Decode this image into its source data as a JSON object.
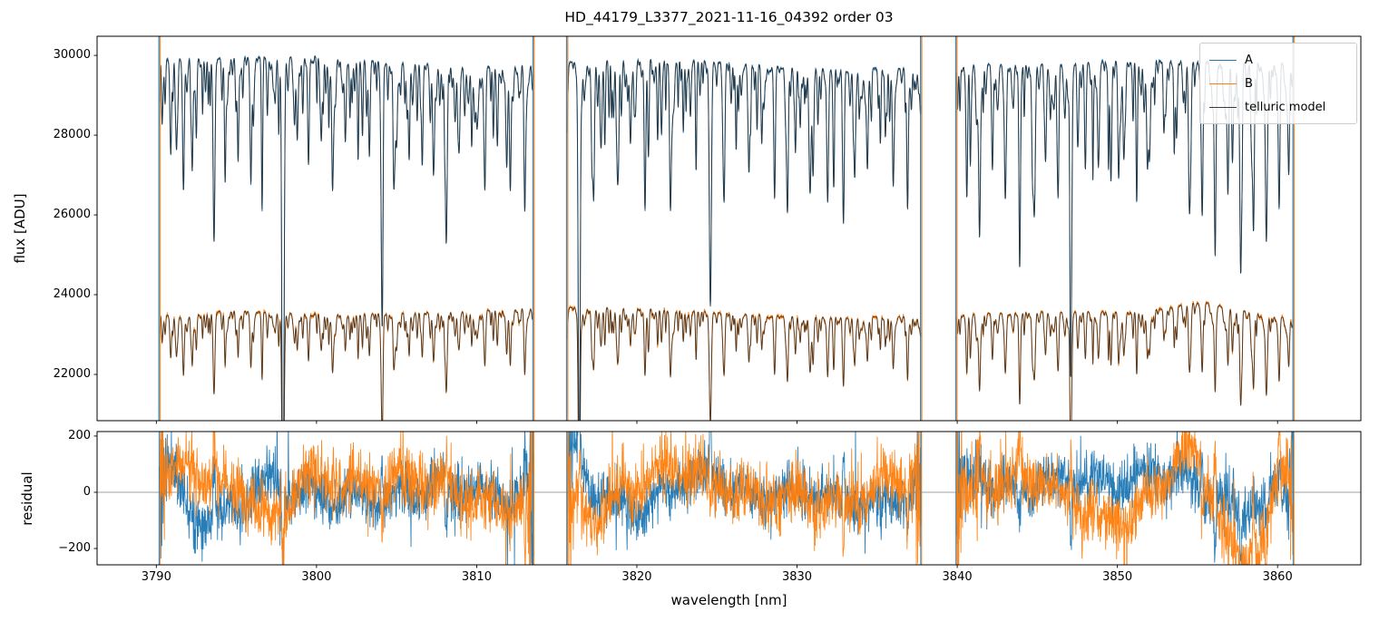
{
  "title": "HD_44179_L3377_2021-11-16_04392  order 03",
  "chart_data": [
    {
      "type": "line",
      "panel": "flux",
      "ylabel": "flux [ADU]",
      "xlim": [
        3786.3,
        3865.2
      ],
      "ylim": [
        20840,
        30480
      ],
      "xticks": [
        3790,
        3800,
        3810,
        3820,
        3830,
        3840,
        3850,
        3860
      ],
      "yticks": [
        22000,
        24000,
        26000,
        28000,
        30000
      ],
      "legend_position": "upper right",
      "segments": [
        [
          3790.2,
          3813.55
        ],
        [
          3815.65,
          3837.75
        ],
        [
          3839.95,
          3861.0
        ]
      ],
      "boundaries": [
        3790.2,
        3813.55,
        3815.65,
        3837.75,
        3839.95,
        3861.0
      ],
      "series": [
        {
          "name": "A",
          "color": "#1f77b4",
          "absorption_exponent": 1.0,
          "noise_adu": 22,
          "seed": 5,
          "continuum": {
            "base": 29850,
            "waves": [
              [
                120,
                0.25,
                0
              ],
              [
                80,
                0.09,
                1.3
              ]
            ],
            "dips": [
              [
                3795,
                100,
                2.5
              ],
              [
                3846,
                180,
                3.5
              ]
            ]
          }
        },
        {
          "name": "B",
          "color": "#ff7f0e",
          "absorption_exponent": 0.55,
          "noise_adu": 26,
          "seed": 13,
          "continuum": {
            "base": 23550,
            "waves": [
              [
                90,
                0.21,
                2.1
              ],
              [
                60,
                0.07,
                0.5
              ]
            ],
            "dips": [
              [
                3791.5,
                200,
                1.2
              ],
              [
                3855.5,
                -320,
                2.0
              ]
            ]
          }
        },
        {
          "name": "telluric model",
          "color": "#282828",
          "alpha": 0.8
        }
      ],
      "telluric_lines": [
        [
          3790.9,
          0.08,
          0.05
        ],
        [
          3791.7,
          0.09,
          0.05
        ],
        [
          3792.5,
          0.06,
          0.04
        ],
        [
          3793.6,
          0.13,
          0.06
        ],
        [
          3794.3,
          0.07,
          0.05
        ],
        [
          3795.1,
          0.05,
          0.04
        ],
        [
          3795.9,
          0.1,
          0.05
        ],
        [
          3796.6,
          0.06,
          0.04
        ],
        [
          3797.9,
          0.42,
          0.06
        ],
        [
          3798.8,
          0.06,
          0.05
        ],
        [
          3799.5,
          0.09,
          0.05
        ],
        [
          3800.3,
          0.07,
          0.05
        ],
        [
          3801.0,
          0.11,
          0.05
        ],
        [
          3801.8,
          0.07,
          0.05
        ],
        [
          3802.6,
          0.06,
          0.04
        ],
        [
          3803.3,
          0.08,
          0.05
        ],
        [
          3804.1,
          0.13,
          0.05
        ],
        [
          3805.0,
          0.07,
          0.05
        ],
        [
          3805.8,
          0.05,
          0.04
        ],
        [
          3806.6,
          0.08,
          0.05
        ],
        [
          3807.3,
          0.09,
          0.05
        ],
        [
          3808.1,
          0.15,
          0.06
        ],
        [
          3808.9,
          0.07,
          0.05
        ],
        [
          3809.7,
          0.05,
          0.04
        ],
        [
          3810.5,
          0.08,
          0.05
        ],
        [
          3811.3,
          0.06,
          0.04
        ],
        [
          3812.1,
          0.1,
          0.05
        ],
        [
          3813.0,
          0.12,
          0.05
        ],
        [
          3816.4,
          0.34,
          0.06
        ],
        [
          3817.2,
          0.08,
          0.05
        ],
        [
          3818.0,
          0.06,
          0.04
        ],
        [
          3818.8,
          0.1,
          0.05
        ],
        [
          3819.6,
          0.07,
          0.05
        ],
        [
          3820.5,
          0.1,
          0.05
        ],
        [
          3821.3,
          0.06,
          0.04
        ],
        [
          3822.1,
          0.08,
          0.05
        ],
        [
          3822.9,
          0.06,
          0.04
        ],
        [
          3823.7,
          0.05,
          0.04
        ],
        [
          3824.6,
          0.17,
          0.06
        ],
        [
          3825.4,
          0.08,
          0.05
        ],
        [
          3826.2,
          0.06,
          0.04
        ],
        [
          3827.0,
          0.09,
          0.05
        ],
        [
          3827.8,
          0.06,
          0.04
        ],
        [
          3828.6,
          0.11,
          0.05
        ],
        [
          3829.4,
          0.07,
          0.05
        ],
        [
          3830.2,
          0.05,
          0.04
        ],
        [
          3831.0,
          0.09,
          0.05
        ],
        [
          3831.9,
          0.07,
          0.05
        ],
        [
          3832.9,
          0.13,
          0.05
        ],
        [
          3833.6,
          0.09,
          0.05
        ],
        [
          3834.4,
          0.07,
          0.05
        ],
        [
          3835.2,
          0.05,
          0.04
        ],
        [
          3836.0,
          0.09,
          0.05
        ],
        [
          3836.9,
          0.12,
          0.05
        ],
        [
          3840.6,
          0.1,
          0.05
        ],
        [
          3841.4,
          0.13,
          0.05
        ],
        [
          3842.2,
          0.08,
          0.05
        ],
        [
          3843.0,
          0.11,
          0.05
        ],
        [
          3843.9,
          0.14,
          0.05
        ],
        [
          3844.7,
          0.09,
          0.05
        ],
        [
          3845.5,
          0.07,
          0.05
        ],
        [
          3846.3,
          0.11,
          0.05
        ],
        [
          3847.1,
          0.21,
          0.06
        ],
        [
          3848.0,
          0.09,
          0.05
        ],
        [
          3848.8,
          0.07,
          0.05
        ],
        [
          3849.6,
          0.1,
          0.05
        ],
        [
          3850.4,
          0.08,
          0.05
        ],
        [
          3851.2,
          0.06,
          0.04
        ],
        [
          3852.0,
          0.07,
          0.05
        ],
        [
          3852.9,
          0.05,
          0.04
        ],
        [
          3853.7,
          0.06,
          0.04
        ],
        [
          3854.5,
          0.08,
          0.05
        ],
        [
          3855.3,
          0.12,
          0.05
        ],
        [
          3856.1,
          0.15,
          0.05
        ],
        [
          3856.9,
          0.11,
          0.05
        ],
        [
          3857.7,
          0.16,
          0.06
        ],
        [
          3858.5,
          0.13,
          0.05
        ],
        [
          3859.3,
          0.15,
          0.06
        ],
        [
          3860.1,
          0.12,
          0.05
        ],
        [
          3860.7,
          0.09,
          0.05
        ]
      ],
      "random_line_layers": [
        {
          "spacing": 0.85,
          "max_depth": 0.1,
          "seed": 3.7
        },
        {
          "spacing": 0.17,
          "max_depth": 0.05,
          "seed": 9.1
        }
      ]
    },
    {
      "type": "line",
      "panel": "residual",
      "ylabel": "residual",
      "xlabel": "wavelength [nm]",
      "ylim": [
        -258,
        216
      ],
      "ytick_values": [
        -200,
        0,
        200
      ],
      "ytick_labels": [
        "−200",
        "0",
        "200"
      ],
      "zero_line_color": "#808080",
      "series": [
        {
          "name": "A",
          "color": "#1f77b4",
          "noise": 48,
          "seed": 11,
          "bumps": [
            [
              3790.8,
              110,
              0.4
            ],
            [
              3793.3,
              -100,
              1.3
            ],
            [
              3797,
              50,
              0.8
            ],
            [
              3801,
              -35,
              1.5
            ],
            [
              3816.3,
              130,
              0.35
            ],
            [
              3820,
              -45,
              1.5
            ],
            [
              3824,
              50,
              1.5
            ],
            [
              3833,
              -45,
              1.5
            ],
            [
              3841,
              30,
              1.5
            ],
            [
              3846,
              40,
              2.5
            ],
            [
              3852.5,
              70,
              2.0
            ],
            [
              3857,
              -55,
              1.5
            ]
          ]
        },
        {
          "name": "B",
          "color": "#ff7f0e",
          "noise": 55,
          "seed": 23,
          "bumps": [
            [
              3792,
              85,
              1.6
            ],
            [
              3797.3,
              -115,
              0.8
            ],
            [
              3800.5,
              60,
              1.8
            ],
            [
              3805,
              30,
              2.0
            ],
            [
              3812,
              -60,
              1.5
            ],
            [
              3817,
              -80,
              0.8
            ],
            [
              3823,
              75,
              2.0
            ],
            [
              3830,
              -40,
              2.0
            ],
            [
              3836,
              35,
              1.5
            ],
            [
              3843,
              45,
              2.0
            ],
            [
              3850,
              -90,
              2.0
            ],
            [
              3854.6,
              155,
              1.2
            ],
            [
              3857.9,
              -230,
              1.4
            ],
            [
              3860.6,
              120,
              0.7
            ]
          ]
        }
      ]
    }
  ]
}
